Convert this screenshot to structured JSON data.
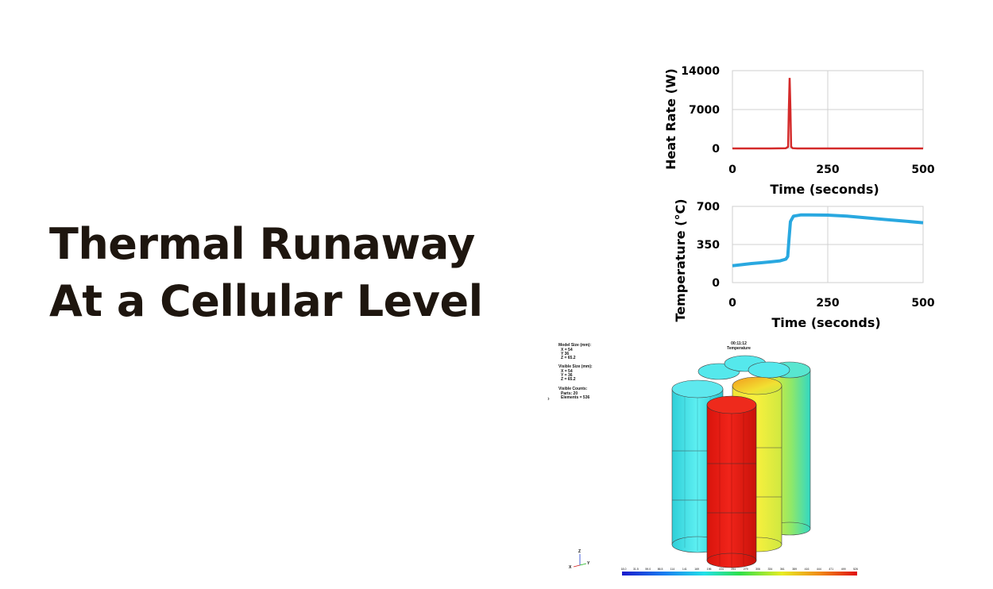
{
  "slide": {
    "title_line1": "Thermal Runaway",
    "title_line2": "At a Cellular Level"
  },
  "chart_data": [
    {
      "type": "line",
      "ylabel": "Heat Rate (W)",
      "xlabel": "Time (seconds)",
      "xlim": [
        0,
        500
      ],
      "ylim": [
        0,
        14000
      ],
      "x_ticks": [
        "0",
        "250",
        "500"
      ],
      "y_ticks": [
        "0",
        "7000",
        "14000"
      ],
      "grid": true,
      "color": "#d42a2a",
      "series": [
        {
          "x": [
            0,
            100,
            140,
            146,
            148,
            150,
            152,
            154,
            158,
            170,
            250,
            400,
            500
          ],
          "y": [
            0,
            0,
            50,
            300,
            7000,
            12700,
            7000,
            300,
            50,
            0,
            0,
            0,
            0
          ]
        }
      ]
    },
    {
      "type": "line",
      "ylabel": "Temperature (°C)",
      "xlabel": "Time (seconds)",
      "xlim": [
        0,
        500
      ],
      "ylim": [
        0,
        700
      ],
      "x_ticks": [
        "0",
        "250",
        "500"
      ],
      "y_ticks": [
        "0",
        "350",
        "700"
      ],
      "grid": true,
      "color": "#29a8e0",
      "series": [
        {
          "x": [
            0,
            25,
            50,
            75,
            100,
            125,
            140,
            145,
            148,
            152,
            160,
            180,
            200,
            250,
            300,
            350,
            400,
            450,
            500
          ],
          "y": [
            155,
            165,
            175,
            182,
            190,
            200,
            215,
            240,
            380,
            560,
            610,
            622,
            622,
            620,
            610,
            595,
            580,
            565,
            550
          ]
        }
      ]
    }
  ],
  "simulation": {
    "model_size_label": "Model Size (mm):",
    "model_x": "X = 54",
    "model_y": "Y   36",
    "model_z": "Z = 65.2",
    "visible_size_label": "Visible Size (mm):",
    "visible_x": "X = 54",
    "visible_y": "Y = 36",
    "visible_z": "Z = 65.2",
    "visible_counts_label": "Visible Counts:",
    "parts": "Parts:   20",
    "elements": "Elements = 536",
    "time": "00:11:12",
    "variable": "Temperature",
    "axis_z": "Z",
    "axis_x": "X",
    "axis_y": "Y",
    "legend_values": [
      "18.0",
      "31.5",
      "59.0",
      "86.5",
      "114",
      "141",
      "169",
      "196",
      "224",
      "251",
      "279",
      "306",
      "334",
      "361",
      "389",
      "416",
      "444",
      "471",
      "499",
      "526"
    ],
    "colors": {
      "cool": "#3fe0e6",
      "warm": "#f0ec2c",
      "hot": "#e61d12",
      "mid": "#3ee0b8"
    }
  }
}
